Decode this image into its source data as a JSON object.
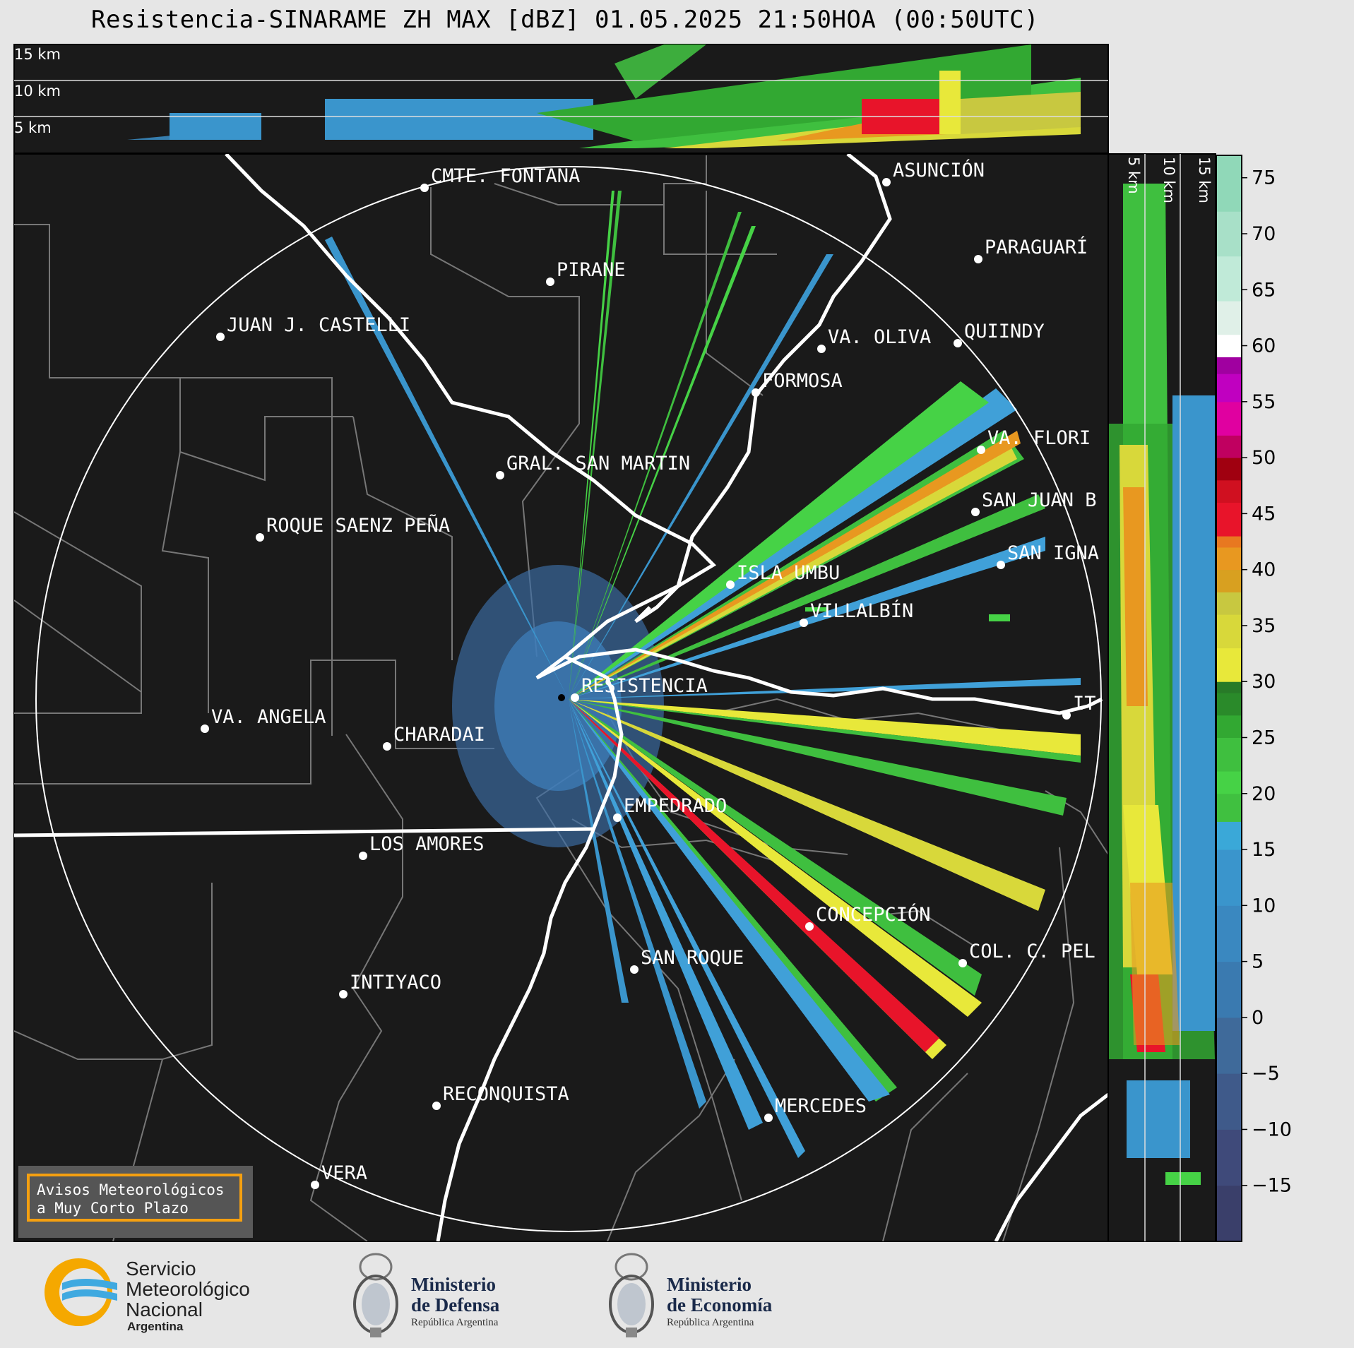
{
  "title": "Resistencia-SINARAME ZH MAX [dBZ] 01.05.2025 21:50HOA (00:50UTC)",
  "top_panel": {
    "height_labels": [
      "15 km",
      "10 km",
      "5 km"
    ]
  },
  "side_panel": {
    "height_labels": [
      "5 km",
      "10 km",
      "15 km"
    ]
  },
  "colorbar": {
    "ticks": [
      "75",
      "70",
      "65",
      "60",
      "55",
      "50",
      "45",
      "40",
      "35",
      "30",
      "25",
      "20",
      "15",
      "10",
      "5",
      "0",
      "−5",
      "−10",
      "−15"
    ],
    "range": [
      -20,
      77
    ]
  },
  "radar_station": "RESISTENCIA",
  "places": [
    {
      "name": "CMTE. FONTANA"
    },
    {
      "name": "ASUNCIÓN"
    },
    {
      "name": "PARAGUARÍ"
    },
    {
      "name": "PIRANE"
    },
    {
      "name": "JUAN J. CASTELLI"
    },
    {
      "name": "VA. OLIVA"
    },
    {
      "name": "QUIINDY"
    },
    {
      "name": "FORMOSA"
    },
    {
      "name": "VA. FLORI"
    },
    {
      "name": "GRAL. SAN MARTIN"
    },
    {
      "name": "SAN JUAN B"
    },
    {
      "name": "ROQUE SAENZ PEÑA"
    },
    {
      "name": "SAN IGNA"
    },
    {
      "name": "ISLA UMBU"
    },
    {
      "name": "VILLALBÍN"
    },
    {
      "name": "RESISTENCIA"
    },
    {
      "name": "VA. ANGELA"
    },
    {
      "name": "CHARADAI"
    },
    {
      "name": "IT"
    },
    {
      "name": "EMPEDRADO"
    },
    {
      "name": "LOS AMORES"
    },
    {
      "name": "CONCEPCIÓN"
    },
    {
      "name": "COL. C. PEL"
    },
    {
      "name": "SAN ROQUE"
    },
    {
      "name": "INTIYACO"
    },
    {
      "name": "RECONQUISTA"
    },
    {
      "name": "MERCEDES"
    },
    {
      "name": "VERA"
    }
  ],
  "notice": {
    "line1": "Avisos Meteorológicos",
    "line2": "a Muy Corto Plazo"
  },
  "logos": {
    "smn": {
      "line1": "Servicio",
      "line2": "Meteorológico",
      "line3": "Nacional",
      "line4": "Argentina"
    },
    "defensa": {
      "line1": "Ministerio",
      "line2": "de Defensa",
      "line3": "República Argentina"
    },
    "economia": {
      "line1": "Ministerio",
      "line2": "de Economía",
      "line3": "República Argentina"
    }
  },
  "colors": {
    "background": "#1a1a1a",
    "page": "#e6e6e6",
    "notice_border": "#f5a010"
  }
}
